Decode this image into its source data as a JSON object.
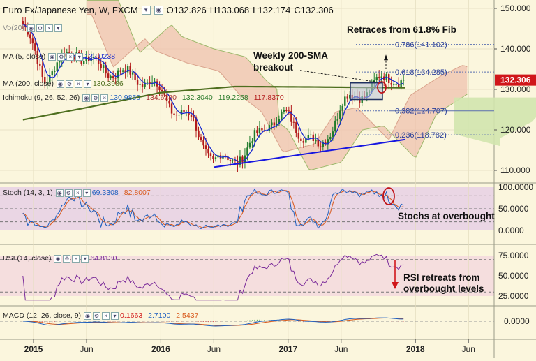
{
  "header": {
    "symbol": "Euro Fx/Japanese Yen, W, FXCM",
    "open": "O132.826",
    "high": "H133.068",
    "low": "L132.174",
    "close": "C132.306"
  },
  "indicators": {
    "vol_label": "Vo(20)",
    "ma5_label": "MA (5, close)",
    "ma5_value": "132.0238",
    "ma200_label": "MA (200, close)",
    "ma200_value": "130.3986",
    "ichimoku_label": "Ichimoku (9, 26, 52, 26)",
    "ichimoku_values": [
      "130.9850",
      "134.6280",
      "132.3040",
      "119.2258",
      "117.8370"
    ],
    "stoch_label": "Stoch (14, 3, 1)",
    "stoch_values": [
      "69.3308",
      "82.8007"
    ],
    "rsi_label": "RSI (14, close)",
    "rsi_value": "64.8130",
    "macd_label": "MACD (12, 26, close, 9)",
    "macd_values": [
      "0.1663",
      "2.7100",
      "2.5437"
    ]
  },
  "annotations": {
    "fib_note": "Retraces from 61.8% Fib",
    "sma_note": "Weekly 200-SMA breakout",
    "stoch_note": "Stochs at overbought",
    "rsi_note": "RSI retreats from overbought levels"
  },
  "fib_levels": [
    {
      "label": "0.786(141.102)",
      "value": 141.102
    },
    {
      "label": "0.618(134.285)",
      "value": 134.285
    },
    {
      "label": "0.382(124.707)",
      "value": 124.707
    },
    {
      "label": "0.236(118.782)",
      "value": 118.782
    }
  ],
  "price_axis": {
    "ticks": [
      "150.000",
      "140.000",
      "130.000",
      "120.000",
      "110.000"
    ],
    "last_price": "132.306"
  },
  "stoch_axis": {
    "ticks": [
      "100.0000",
      "50.0000",
      "0.0000"
    ]
  },
  "rsi_axis": {
    "ticks": [
      "75.0000",
      "50.0000",
      "25.0000"
    ]
  },
  "macd_axis": {
    "ticks": [
      "0.0000"
    ]
  },
  "time_axis": {
    "ticks": [
      "2015",
      "Jun",
      "2016",
      "Jun",
      "2017",
      "Jun",
      "2018",
      "Jun"
    ]
  },
  "colors": {
    "background": "#fbf6dd",
    "up_candle": "#1e7a2a",
    "down_candle": "#b21a1a",
    "ma200": "#4d6e1e",
    "ma5": "#1a2bd0",
    "trendline": "#1616e0",
    "cloud_bear": "#efc2ad",
    "cloud_bull": "#d2e6ae",
    "last_price": "#d0161a"
  },
  "chart_data": {
    "type": "candlestick",
    "title": "Euro Fx/Japanese Yen, W, FXCM",
    "price_range": [
      105,
      155
    ],
    "anchors": [
      {
        "date": "2014-12",
        "price": 146
      },
      {
        "date": "2015-02",
        "price": 133
      },
      {
        "date": "2015-05",
        "price": 140
      },
      {
        "date": "2015-06",
        "price": 137
      },
      {
        "date": "2015-09",
        "price": 134
      },
      {
        "date": "2015-12",
        "price": 132
      },
      {
        "date": "2016-02",
        "price": 126
      },
      {
        "date": "2016-04",
        "price": 122
      },
      {
        "date": "2016-06",
        "price": 112
      },
      {
        "date": "2016-09",
        "price": 114
      },
      {
        "date": "2016-11",
        "price": 122
      },
      {
        "date": "2017-01",
        "price": 123
      },
      {
        "date": "2017-04",
        "price": 115
      },
      {
        "date": "2017-06",
        "price": 126
      },
      {
        "date": "2017-09",
        "price": 131
      },
      {
        "date": "2017-11",
        "price": 133.5
      },
      {
        "date": "2017-12",
        "price": 132.3
      }
    ],
    "ma200_anchors": [
      {
        "date": "2014-12",
        "price": 122.5
      },
      {
        "date": "2015-06",
        "price": 125.5
      },
      {
        "date": "2016-01",
        "price": 129.2
      },
      {
        "date": "2016-08",
        "price": 130.7
      },
      {
        "date": "2017-03",
        "price": 130.6
      },
      {
        "date": "2017-12",
        "price": 130.4
      }
    ],
    "trendline": [
      {
        "date": "2016-06",
        "price": 110.8
      },
      {
        "date": "2017-12",
        "price": 117.6
      }
    ],
    "stoch_range": [
      0,
      100
    ],
    "rsi_range": [
      20,
      80
    ],
    "macd_zero": 0
  }
}
